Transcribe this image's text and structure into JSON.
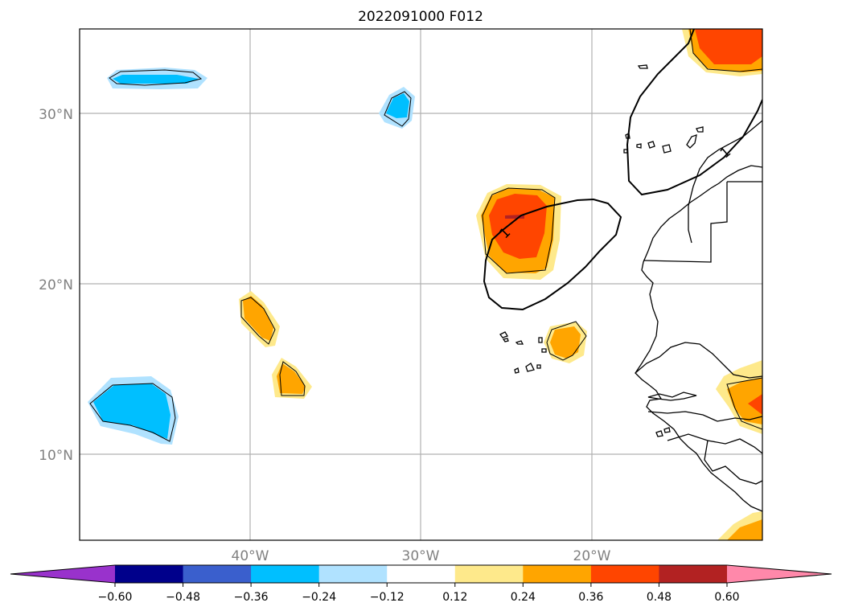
{
  "title": "2022091000 F012",
  "map": {
    "lon_range": [
      -50,
      -10
    ],
    "lat_range": [
      5,
      35
    ],
    "grid": true,
    "lat_ticks": [
      {
        "value": 30,
        "label": "30°N"
      },
      {
        "value": 20,
        "label": "20°N"
      },
      {
        "value": 10,
        "label": "10°N"
      }
    ],
    "lon_ticks": [
      {
        "value": -40,
        "label": "40°W"
      },
      {
        "value": -30,
        "label": "30°W"
      },
      {
        "value": -20,
        "label": "20°W"
      }
    ],
    "contour_label": "1"
  },
  "colorbar": {
    "extend": "both",
    "colors": [
      "#9932cc",
      "#00008b",
      "#3a5fcd",
      "#00bfff",
      "#b0e2ff",
      "#ffffff",
      "#fee98b",
      "#ffa500",
      "#ff4500",
      "#b22222",
      "#ff88aa"
    ],
    "boundaries": [
      -0.6,
      -0.48,
      -0.36,
      -0.24,
      -0.12,
      0.12,
      0.24,
      0.36,
      0.48,
      0.6
    ],
    "tick_labels": [
      "−0.60",
      "−0.48",
      "−0.36",
      "−0.24",
      "−0.12",
      "0.12",
      "0.24",
      "0.36",
      "0.48",
      "0.60"
    ]
  }
}
